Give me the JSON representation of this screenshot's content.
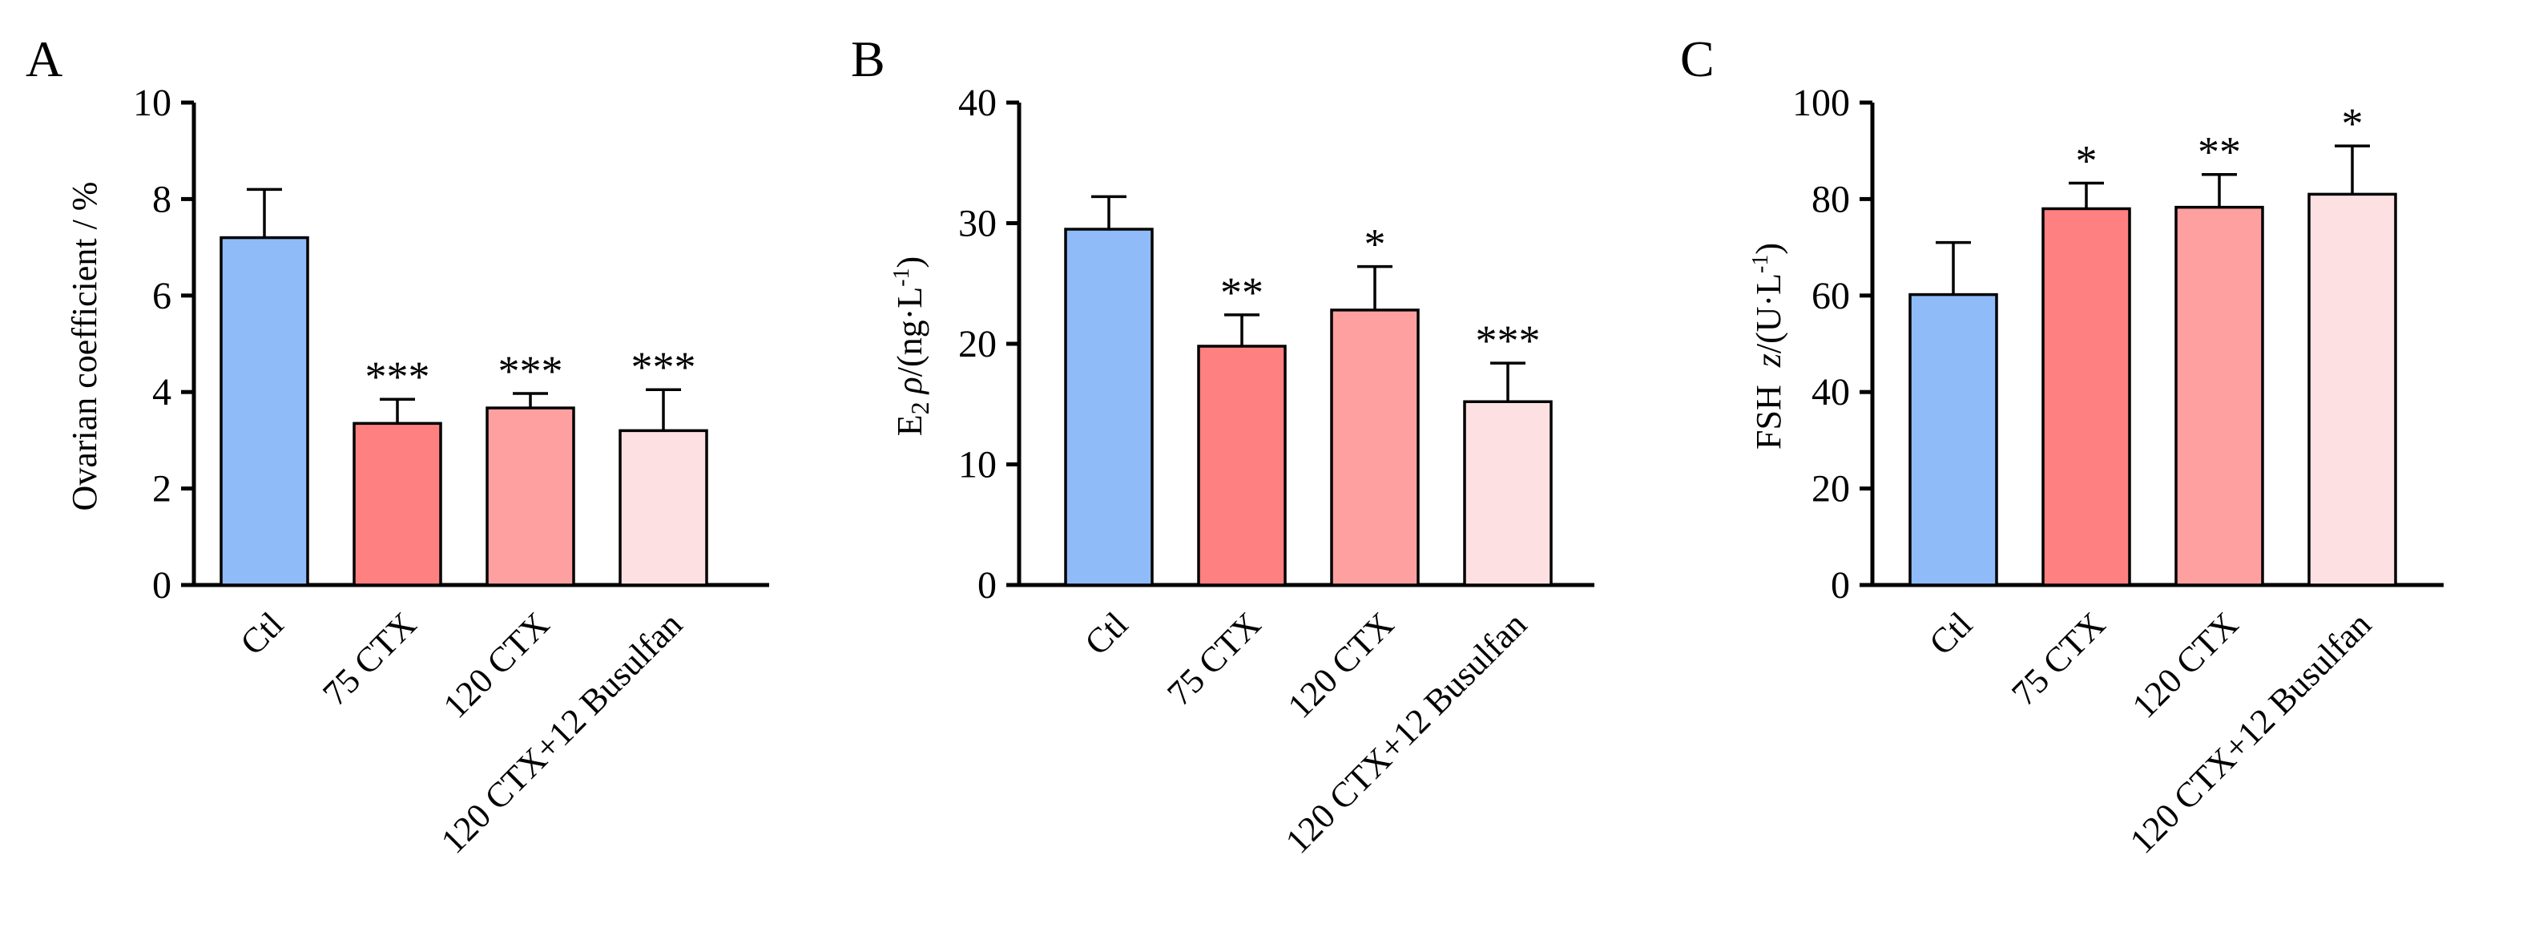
{
  "chart_data": [
    {
      "type": "bar",
      "panel": "A",
      "ylabel": "Ovarian coefficient / %",
      "ylim": [
        0,
        10
      ],
      "yticks": [
        "0",
        "2",
        "4",
        "6",
        "8",
        "10"
      ],
      "categories": [
        "Ctl",
        "75 CTX",
        "120 CTX",
        "120 CTX+12 Busulfan"
      ],
      "values": [
        7.2,
        3.35,
        3.67,
        3.2
      ],
      "errors": [
        1.0,
        0.5,
        0.3,
        0.85
      ],
      "significance": [
        "",
        "***",
        "***",
        "***"
      ],
      "colors": [
        "#8fbcf8",
        "#fe8080",
        "#fea0a0",
        "#fde0e2"
      ]
    },
    {
      "type": "bar",
      "panel": "B",
      "ylabel_main": "E",
      "ylabel_sub": "2",
      "ylabel_rho": "ρ",
      "ylabel_unit": "/(ng·L",
      "ylabel_sup": "-1",
      "ylabel_end": ")",
      "ylim": [
        0,
        40
      ],
      "yticks": [
        "0",
        "10",
        "20",
        "30",
        "40"
      ],
      "categories": [
        "Ctl",
        "75 CTX",
        "120 CTX",
        "120 CTX+12 Busulfan"
      ],
      "values": [
        29.5,
        19.8,
        22.8,
        15.2
      ],
      "errors": [
        2.7,
        2.6,
        3.6,
        3.2
      ],
      "significance": [
        "",
        "**",
        "*",
        "***"
      ],
      "colors": [
        "#8fbcf8",
        "#fe8080",
        "#fea0a0",
        "#fde0e2"
      ]
    },
    {
      "type": "bar",
      "panel": "C",
      "ylabel_main": "FSH",
      "ylabel_z": "z",
      "ylabel_unit": "/(U·L",
      "ylabel_sup": "-1",
      "ylabel_end": ")",
      "ylim": [
        0,
        100
      ],
      "yticks": [
        "0",
        "20",
        "40",
        "60",
        "80",
        "100"
      ],
      "categories": [
        "Ctl",
        "75 CTX",
        "120 CTX",
        "120 CTX+12 Busulfan"
      ],
      "values": [
        60.2,
        78,
        78.3,
        81
      ],
      "errors": [
        10.8,
        5.3,
        6.8,
        10
      ],
      "significance": [
        "",
        "*",
        "**",
        "*"
      ],
      "colors": [
        "#8fbcf8",
        "#fe8080",
        "#fea0a0",
        "#fde0e2"
      ]
    }
  ]
}
